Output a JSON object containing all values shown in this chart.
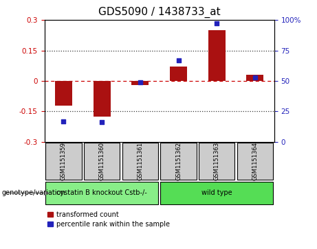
{
  "title": "GDS5090 / 1438733_at",
  "samples": [
    "GSM1151359",
    "GSM1151360",
    "GSM1151361",
    "GSM1151362",
    "GSM1151363",
    "GSM1151364"
  ],
  "transformed_count": [
    -0.12,
    -0.175,
    -0.02,
    0.07,
    0.25,
    0.03
  ],
  "percentile_rank": [
    17,
    16,
    49,
    67,
    97,
    53
  ],
  "ylim_left": [
    -0.3,
    0.3
  ],
  "ylim_right": [
    0,
    100
  ],
  "yticks_left": [
    -0.3,
    -0.15,
    0,
    0.15,
    0.3
  ],
  "ytick_labels_left": [
    "-0.3",
    "-0.15",
    "0",
    "0.15",
    "0.3"
  ],
  "yticks_right": [
    0,
    25,
    50,
    75,
    100
  ],
  "ytick_labels_right": [
    "0",
    "25",
    "50",
    "75",
    "100%"
  ],
  "hlines_dotted": [
    0.15,
    -0.15
  ],
  "hline_zero": 0.0,
  "bar_color": "#aa1111",
  "scatter_color": "#2222bb",
  "bar_width": 0.45,
  "groups": [
    {
      "label": "cystatin B knockout Cstb-/-",
      "indices": [
        0,
        1,
        2
      ],
      "color": "#88ee88"
    },
    {
      "label": "wild type",
      "indices": [
        3,
        4,
        5
      ],
      "color": "#55dd55"
    }
  ],
  "sample_box_color": "#cccccc",
  "group_row_label": "genotype/variation",
  "legend_bar_label": "transformed count",
  "legend_scatter_label": "percentile rank within the sample",
  "background_color": "#ffffff",
  "title_fontsize": 11,
  "tick_fontsize": 7.5,
  "sample_fontsize": 6,
  "group_fontsize": 7,
  "legend_fontsize": 7,
  "zero_line_color": "#cc0000",
  "dotted_line_color": "#333333",
  "left_axis_color": "#cc0000",
  "right_axis_color": "#2222bb"
}
